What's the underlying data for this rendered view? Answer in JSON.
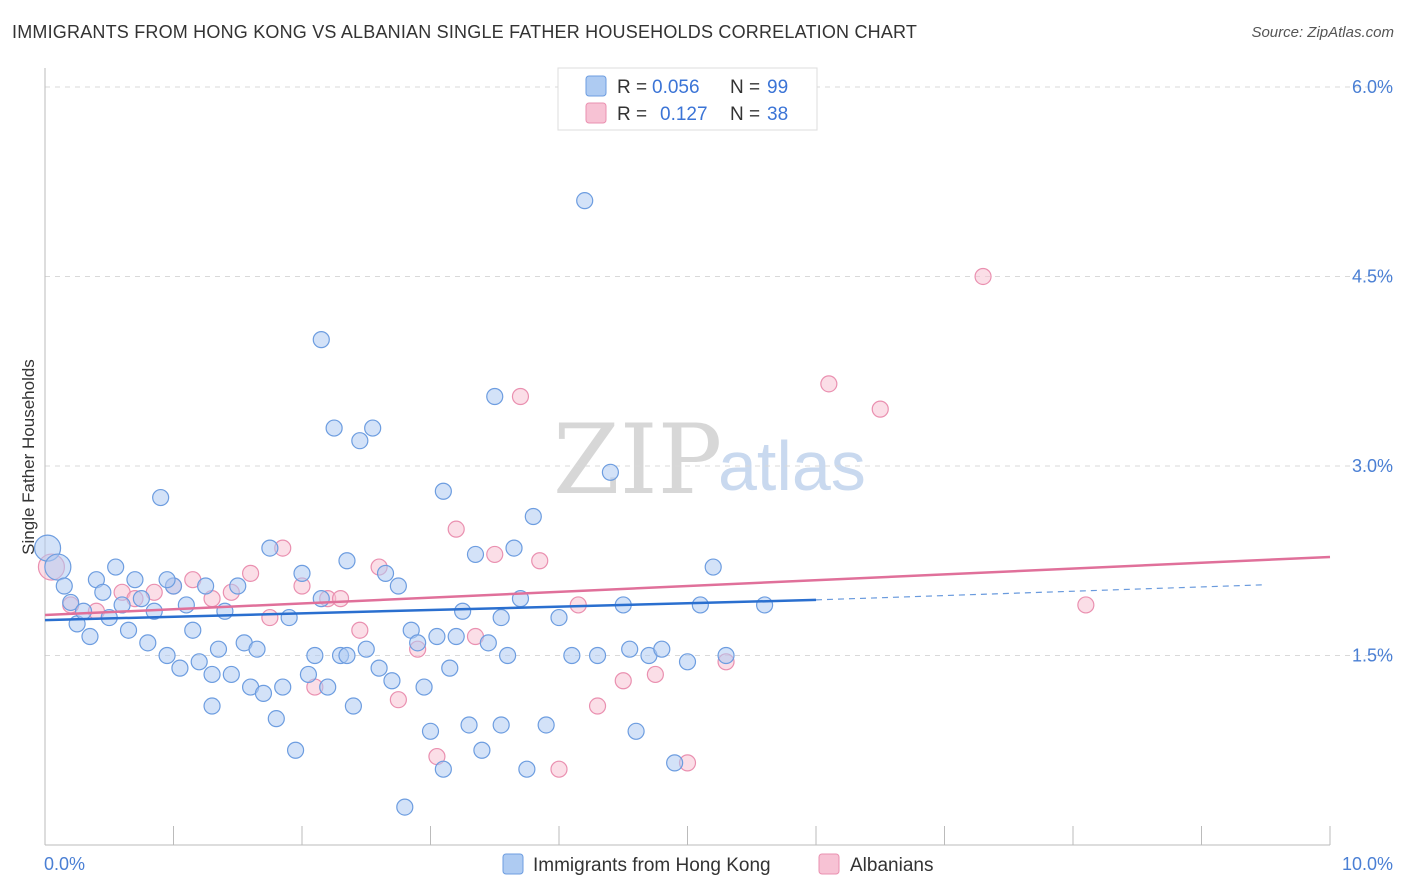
{
  "title": "IMMIGRANTS FROM HONG KONG VS ALBANIAN SINGLE FATHER HOUSEHOLDS CORRELATION CHART",
  "source": "Source: ZipAtlas.com",
  "watermark": {
    "zip": "ZIP",
    "atlas": "atlas"
  },
  "colors": {
    "blue_fill": "#aecbf2",
    "blue_stroke": "#6d9de0",
    "blue_line": "#2a6fcf",
    "pink_fill": "#f7c2d4",
    "pink_stroke": "#ea90b0",
    "pink_line": "#e0709a",
    "grid": "#d9d9d9",
    "tick_text": "#4a7fd4"
  },
  "legend": {
    "rows": [
      {
        "r_label": "R =",
        "r_value": "0.056",
        "n_label": "N =",
        "n_value": "99"
      },
      {
        "r_label": "R =",
        "r_value": "0.127",
        "n_label": "N =",
        "n_value": "38"
      }
    ]
  },
  "bottom_legend": [
    "Immigrants from Hong Kong",
    "Albanians"
  ],
  "chart_data": {
    "type": "scatter",
    "title": "IMMIGRANTS FROM HONG KONG VS ALBANIAN SINGLE FATHER HOUSEHOLDS CORRELATION CHART",
    "xlabel": "",
    "ylabel": "Single Father Households",
    "xlim": [
      0,
      10
    ],
    "ylim": [
      0,
      6.15
    ],
    "x_tick_labels": [
      "0.0%",
      "10.0%"
    ],
    "y_ticks": [
      1.5,
      3.0,
      4.5,
      6.0
    ],
    "y_tick_labels": [
      "1.5%",
      "3.0%",
      "4.5%",
      "6.0%"
    ],
    "grid": true,
    "legend_position": "top-center",
    "series": [
      {
        "name": "Immigrants from Hong Kong",
        "color": "#aecbf2",
        "r": 0.056,
        "n": 99,
        "trend": {
          "x": [
            0,
            6.0
          ],
          "y": [
            1.78,
            1.94
          ]
        },
        "trend_extension": {
          "x": [
            6.0,
            9.5
          ],
          "y": [
            1.94,
            2.06
          ]
        },
        "x": [
          0.02,
          0.1,
          0.15,
          0.2,
          0.25,
          0.3,
          0.35,
          0.4,
          0.45,
          0.5,
          0.55,
          0.6,
          0.65,
          0.7,
          0.75,
          0.8,
          0.85,
          0.9,
          0.95,
          1.0,
          1.05,
          1.1,
          1.15,
          1.2,
          1.25,
          1.3,
          1.35,
          1.4,
          1.45,
          1.5,
          1.55,
          1.6,
          1.65,
          1.7,
          1.75,
          1.8,
          1.85,
          1.9,
          1.95,
          2.0,
          2.05,
          2.1,
          2.15,
          2.2,
          2.25,
          2.3,
          2.35,
          2.4,
          2.45,
          2.5,
          2.55,
          2.6,
          2.65,
          2.7,
          2.75,
          2.8,
          2.85,
          2.9,
          2.95,
          3.0,
          3.05,
          3.1,
          3.15,
          3.2,
          3.25,
          3.3,
          3.35,
          3.4,
          3.45,
          3.5,
          3.55,
          3.6,
          3.65,
          3.7,
          3.75,
          3.8,
          3.9,
          4.0,
          4.1,
          4.2,
          4.3,
          4.4,
          4.5,
          4.6,
          4.7,
          4.8,
          4.9,
          5.0,
          5.1,
          5.2,
          5.3,
          1.3,
          0.95,
          2.15,
          2.35,
          3.1,
          3.55,
          4.55,
          5.6
        ],
        "y": [
          2.35,
          2.2,
          2.05,
          1.92,
          1.75,
          1.85,
          1.65,
          2.1,
          2.0,
          1.8,
          2.2,
          1.9,
          1.7,
          2.1,
          1.95,
          1.6,
          1.85,
          2.75,
          1.5,
          2.05,
          1.4,
          1.9,
          1.7,
          1.45,
          2.05,
          1.1,
          1.55,
          1.85,
          1.35,
          2.05,
          1.6,
          1.25,
          1.55,
          1.2,
          2.35,
          1.0,
          1.25,
          1.8,
          0.75,
          2.15,
          1.35,
          1.5,
          1.95,
          1.25,
          3.3,
          1.5,
          2.25,
          1.1,
          3.2,
          1.55,
          3.3,
          1.4,
          2.15,
          1.3,
          2.05,
          0.3,
          1.7,
          1.6,
          1.25,
          0.9,
          1.65,
          0.6,
          1.4,
          1.65,
          1.85,
          0.95,
          2.3,
          0.75,
          1.6,
          3.55,
          1.8,
          1.5,
          2.35,
          1.95,
          0.6,
          2.6,
          0.95,
          1.8,
          1.5,
          5.1,
          1.5,
          2.95,
          1.9,
          0.9,
          1.5,
          1.55,
          0.65,
          1.45,
          1.9,
          2.2,
          1.5,
          1.35,
          2.1,
          4.0,
          1.5,
          2.8,
          0.95,
          1.55,
          1.9
        ]
      },
      {
        "name": "Albanians",
        "color": "#f7c2d4",
        "r": 0.127,
        "n": 38,
        "trend": {
          "x": [
            0,
            10
          ],
          "y": [
            1.82,
            2.28
          ]
        },
        "x": [
          0.05,
          0.2,
          0.4,
          0.6,
          0.7,
          0.85,
          1.0,
          1.15,
          1.3,
          1.45,
          1.6,
          1.75,
          1.85,
          2.0,
          2.1,
          2.2,
          2.3,
          2.45,
          2.6,
          2.75,
          2.9,
          3.05,
          3.2,
          3.35,
          3.5,
          3.7,
          3.85,
          4.0,
          4.15,
          4.3,
          4.5,
          4.75,
          5.0,
          5.3,
          6.1,
          6.5,
          7.3,
          8.1
        ],
        "y": [
          2.2,
          1.9,
          1.85,
          2.0,
          1.95,
          2.0,
          2.05,
          2.1,
          1.95,
          2.0,
          2.15,
          1.8,
          2.35,
          2.05,
          1.25,
          1.95,
          1.95,
          1.7,
          2.2,
          1.15,
          1.55,
          0.7,
          2.5,
          1.65,
          2.3,
          3.55,
          2.25,
          0.6,
          1.9,
          1.1,
          1.3,
          1.35,
          0.65,
          1.45,
          3.65,
          3.45,
          4.5,
          1.9
        ]
      }
    ]
  }
}
